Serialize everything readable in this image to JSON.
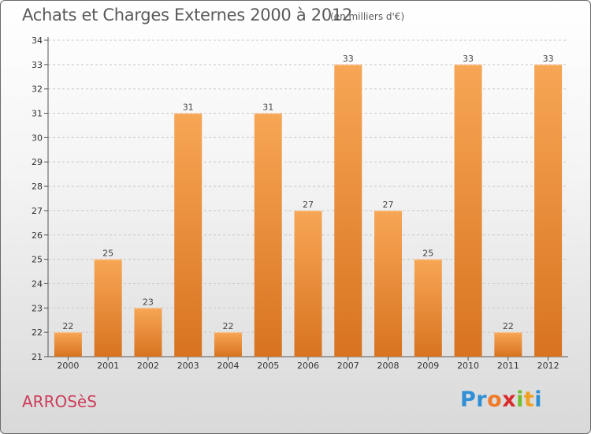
{
  "header": {
    "title": "Achats et Charges Externes 2000 à 2012",
    "subtitle": "(en milliers d'€)"
  },
  "footer": {
    "commune": "ARROSèS",
    "logo_letters": [
      {
        "char": "P",
        "color": "#2f8fd6"
      },
      {
        "char": "r",
        "color": "#2f8fd6"
      },
      {
        "char": "o",
        "color": "#f07a2a"
      },
      {
        "char": "x",
        "color": "#d92b2b"
      },
      {
        "char": "i",
        "color": "#6fbf2f"
      },
      {
        "char": "t",
        "color": "#f0a020"
      },
      {
        "char": "i",
        "color": "#2f8fd6"
      }
    ]
  },
  "chart_data": {
    "type": "bar",
    "categories": [
      "2000",
      "2001",
      "2002",
      "2003",
      "2004",
      "2005",
      "2006",
      "2007",
      "2008",
      "2009",
      "2010",
      "2011",
      "2012"
    ],
    "values": [
      22,
      25,
      23,
      31,
      22,
      31,
      27,
      33,
      27,
      25,
      33,
      22,
      33
    ],
    "value_labels": [
      "22",
      "25",
      "23",
      "31",
      "22",
      "31",
      "27",
      "33",
      "27",
      "25",
      "33",
      "22",
      "33"
    ],
    "title": "Achats et Charges Externes 2000 à 2012",
    "ylim": [
      21,
      34
    ],
    "yticks": [
      "21",
      "22",
      "23",
      "24",
      "25",
      "26",
      "27",
      "28",
      "29",
      "30",
      "31",
      "32",
      "33",
      "34"
    ],
    "grid": true,
    "bar_color_top": "#f7a655",
    "bar_color_bottom": "#d8731f"
  }
}
